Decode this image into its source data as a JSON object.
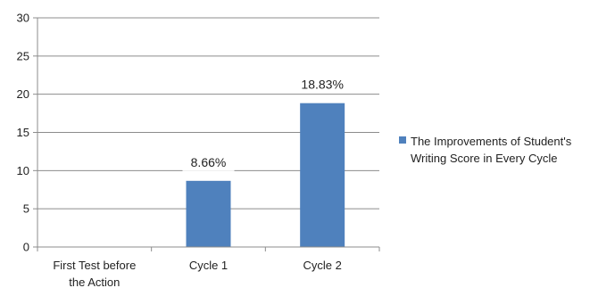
{
  "chart_data": {
    "type": "bar",
    "categories": [
      "First Test before the Action",
      "Cycle 1",
      "Cycle 2"
    ],
    "category_label_lines": [
      [
        "First Test before",
        "the Action"
      ],
      [
        "Cycle 1"
      ],
      [
        "Cycle 2"
      ]
    ],
    "series": [
      {
        "name": "The Improvements of Student's Writing Score in Every Cycle",
        "legend_lines": [
          "The Improvements of Student's",
          "Writing Score in Every Cycle"
        ],
        "values": [
          0,
          8.66,
          18.83
        ],
        "data_labels": [
          "",
          "8.66%",
          "18.83%"
        ],
        "color": "#4f81bd"
      }
    ],
    "ylim": [
      0,
      30
    ],
    "yticks": [
      "0",
      "5",
      "10",
      "15",
      "20",
      "25",
      "30"
    ],
    "grid": true,
    "legend_position": "right",
    "title": "",
    "xlabel": "",
    "ylabel": ""
  }
}
